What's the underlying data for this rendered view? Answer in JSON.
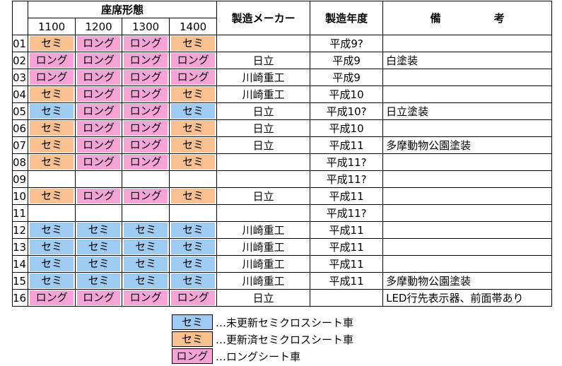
{
  "header": {
    "group": "座席形態",
    "subs": [
      "1100",
      "1200",
      "1300",
      "1400"
    ],
    "maker": "製造メーカー",
    "year": "製造年度",
    "note": "備　　　　　考"
  },
  "table": {
    "rows": [
      {
        "no": "01",
        "seats": [
          {
            "text": "セミ",
            "color": "#fac090"
          },
          {
            "text": "ロング",
            "color": "#f7a3d8"
          },
          {
            "text": "ロング",
            "color": "#f7a3d8"
          },
          {
            "text": "セミ",
            "color": "#fac090"
          }
        ],
        "maker": null,
        "year": "平成9?",
        "note": null
      },
      {
        "no": "02",
        "seats": [
          {
            "text": "ロング",
            "color": "#f7a3d8"
          },
          {
            "text": "ロング",
            "color": "#f7a3d8"
          },
          {
            "text": "ロング",
            "color": "#f7a3d8"
          },
          {
            "text": "ロング",
            "color": "#f7a3d8"
          }
        ],
        "maker": "日立",
        "year": "平成9",
        "note": "白塗装"
      },
      {
        "no": "03",
        "seats": [
          {
            "text": "ロング",
            "color": "#f7a3d8"
          },
          {
            "text": "ロング",
            "color": "#f7a3d8"
          },
          {
            "text": "ロング",
            "color": "#f7a3d8"
          },
          {
            "text": "ロング",
            "color": "#f7a3d8"
          }
        ],
        "maker": "川崎重工",
        "year": "平成9",
        "note": null
      },
      {
        "no": "04",
        "seats": [
          {
            "text": "セミ",
            "color": "#fac090"
          },
          {
            "text": "ロング",
            "color": "#f7a3d8"
          },
          {
            "text": "ロング",
            "color": "#f7a3d8"
          },
          {
            "text": "セミ",
            "color": "#fac090"
          }
        ],
        "maker": "川崎重工",
        "year": "平成10",
        "note": null
      },
      {
        "no": "05",
        "seats": [
          {
            "text": "セミ",
            "color": "#9ecbf2"
          },
          {
            "text": "ロング",
            "color": "#f7a3d8"
          },
          {
            "text": "ロング",
            "color": "#f7a3d8"
          },
          {
            "text": "セミ",
            "color": "#9ecbf2"
          }
        ],
        "maker": "日立",
        "year": "平成10?",
        "note": "日立塗装"
      },
      {
        "no": "06",
        "seats": [
          {
            "text": "セミ",
            "color": "#fac090"
          },
          {
            "text": "ロング",
            "color": "#f7a3d8"
          },
          {
            "text": "ロング",
            "color": "#f7a3d8"
          },
          {
            "text": "セミ",
            "color": "#fac090"
          }
        ],
        "maker": "日立",
        "year": "平成10",
        "note": null
      },
      {
        "no": "07",
        "seats": [
          {
            "text": "セミ",
            "color": "#fac090"
          },
          {
            "text": "ロング",
            "color": "#f7a3d8"
          },
          {
            "text": "ロング",
            "color": "#f7a3d8"
          },
          {
            "text": "セミ",
            "color": "#fac090"
          }
        ],
        "maker": "日立",
        "year": "平成11",
        "note": "多摩動物公園塗装"
      },
      {
        "no": "08",
        "seats": [
          {
            "text": "セミ",
            "color": "#fac090"
          },
          {
            "text": "ロング",
            "color": "#f7a3d8"
          },
          {
            "text": "ロング",
            "color": "#f7a3d8"
          },
          {
            "text": "セミ",
            "color": "#fac090"
          }
        ],
        "maker": null,
        "year": "平成11?",
        "note": null
      },
      {
        "no": "09",
        "seats": [
          null,
          null,
          null,
          null
        ],
        "maker": null,
        "year": "平成11?",
        "note": null
      },
      {
        "no": "10",
        "seats": [
          {
            "text": "セミ",
            "color": "#fac090"
          },
          {
            "text": "ロング",
            "color": "#f7a3d8"
          },
          {
            "text": "ロング",
            "color": "#f7a3d8"
          },
          {
            "text": "セミ",
            "color": "#fac090"
          }
        ],
        "maker": "日立",
        "year": "平成11",
        "note": null
      },
      {
        "no": "11",
        "seats": [
          null,
          null,
          null,
          null
        ],
        "maker": null,
        "year": "平成11?",
        "note": null
      },
      {
        "no": "12",
        "seats": [
          {
            "text": "セミ",
            "color": "#9ecbf2"
          },
          {
            "text": "セミ",
            "color": "#9ecbf2"
          },
          {
            "text": "セミ",
            "color": "#9ecbf2"
          },
          {
            "text": "セミ",
            "color": "#9ecbf2"
          }
        ],
        "maker": "川崎重工",
        "year": "平成11",
        "note": null
      },
      {
        "no": "13",
        "seats": [
          {
            "text": "セミ",
            "color": "#9ecbf2"
          },
          {
            "text": "セミ",
            "color": "#9ecbf2"
          },
          {
            "text": "セミ",
            "color": "#9ecbf2"
          },
          {
            "text": "セミ",
            "color": "#9ecbf2"
          }
        ],
        "maker": "川崎重工",
        "year": "平成11",
        "note": null
      },
      {
        "no": "14",
        "seats": [
          {
            "text": "セミ",
            "color": "#9ecbf2"
          },
          {
            "text": "セミ",
            "color": "#9ecbf2"
          },
          {
            "text": "セミ",
            "color": "#9ecbf2"
          },
          {
            "text": "セミ",
            "color": "#9ecbf2"
          }
        ],
        "maker": "川崎重工",
        "year": "平成11",
        "note": null
      },
      {
        "no": "15",
        "seats": [
          {
            "text": "セミ",
            "color": "#9ecbf2"
          },
          {
            "text": "セミ",
            "color": "#9ecbf2"
          },
          {
            "text": "セミ",
            "color": "#9ecbf2"
          },
          {
            "text": "セミ",
            "color": "#9ecbf2"
          }
        ],
        "maker": "川崎重工",
        "year": "平成11",
        "note": "多摩動物公園塗装"
      },
      {
        "no": "16",
        "seats": [
          {
            "text": "ロング",
            "color": "#f7a3d8"
          },
          {
            "text": "ロング",
            "color": "#f7a3d8"
          },
          {
            "text": "ロング",
            "color": "#f7a3d8"
          },
          {
            "text": "ロング",
            "color": "#f7a3d8"
          }
        ],
        "maker": "日立",
        "year": null,
        "note": "LED行先表示器、前面帯あり"
      }
    ]
  },
  "legend": [
    {
      "label": "セミ",
      "color": "#9ecbf2",
      "text": "…未更新セミクロスシート車"
    },
    {
      "label": "セミ",
      "color": "#fac090",
      "text": "…更新済セミクロスシート車"
    },
    {
      "label": "ロング",
      "color": "#f7a3d8",
      "text": "…ロングシート車"
    }
  ]
}
